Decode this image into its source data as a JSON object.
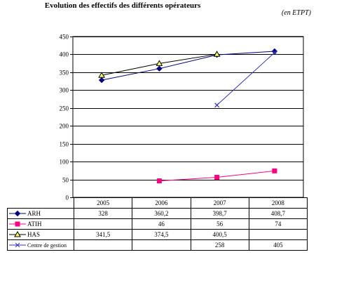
{
  "title": "Evolution des effectifs des différents opérateurs",
  "unit": "(en ETPT)",
  "chart_data": {
    "type": "line",
    "categories": [
      "2005",
      "2006",
      "2007",
      "2008"
    ],
    "ylim": [
      0,
      450
    ],
    "yticks": [
      0,
      50,
      100,
      150,
      200,
      250,
      300,
      350,
      400,
      450
    ],
    "grid": true,
    "series": [
      {
        "name": "ARH",
        "values": [
          328,
          360.2,
          398.7,
          408.7
        ],
        "labels": [
          "328",
          "360,2",
          "398,7",
          "408,7"
        ],
        "color": "#000080",
        "marker": "diamond"
      },
      {
        "name": "ATIH",
        "values": [
          null,
          46,
          56,
          74
        ],
        "labels": [
          "",
          "46",
          "56",
          "74"
        ],
        "color": "#ff0080",
        "marker": "square"
      },
      {
        "name": "HAS",
        "values": [
          341.5,
          374.5,
          400.5,
          null
        ],
        "labels": [
          "341,5",
          "374,5",
          "400,5",
          ""
        ],
        "color": "#000000",
        "marker": "triangle"
      },
      {
        "name": "Centre de gestion",
        "values": [
          null,
          null,
          258,
          405
        ],
        "labels": [
          "",
          "",
          "258",
          "405"
        ],
        "color": "#3333aa",
        "marker": "x"
      }
    ]
  }
}
